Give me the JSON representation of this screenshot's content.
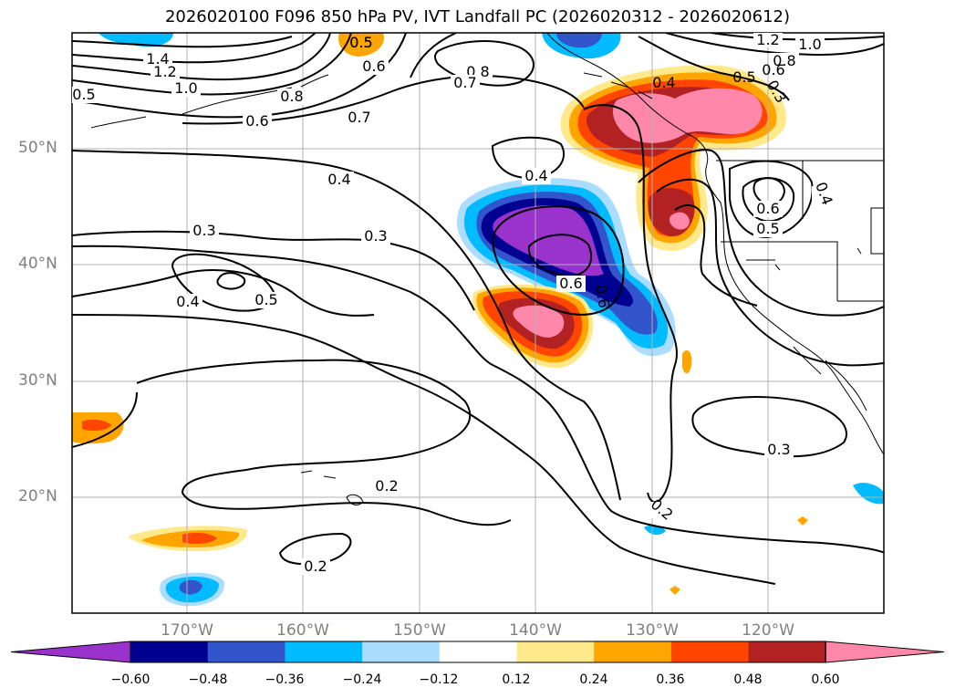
{
  "title": "2026020100 F096 850 hPa PV, IVT Landfall PC (2026020312 - 2026020612)",
  "lat_labels": [
    "50°N",
    "40°N",
    "30°N",
    "20°N"
  ],
  "lon_labels": [
    "170°W",
    "160°W",
    "150°W",
    "140°W",
    "130°W",
    "120°W"
  ],
  "contour_labels": [
    "1.4",
    "1.2",
    "1.0",
    "0.5",
    "0.8",
    "0.6",
    "0.7",
    "0.8",
    "0.7",
    "0.5",
    "0.6",
    "0.4",
    "0.4",
    "0.3",
    "0.3",
    "0.4",
    "0.5",
    "0.6",
    "0.6",
    "0.5",
    "0.4",
    "0.2",
    "0.2",
    "0.3",
    "0.2",
    "1.2",
    "1.0",
    "0.8",
    "0.6",
    "0.5",
    "0.4",
    "0.3",
    "0.5",
    "0.6"
  ],
  "colorbar": {
    "ticks": [
      "−0.60",
      "−0.48",
      "−0.36",
      "−0.24",
      "−0.12",
      "0.12",
      "0.24",
      "0.36",
      "0.48",
      "0.60"
    ],
    "colors": [
      "#9933CC",
      "#000090",
      "#3355CC",
      "#00BBFF",
      "#AADDFF",
      "#FFFFFF",
      "#FFE98A",
      "#FFA500",
      "#FF4500",
      "#B22222",
      "#FF88AA",
      "#FF88AA"
    ]
  },
  "colors": {
    "coast": "#000000",
    "contour": "#000000",
    "grid": "#b0b0b0",
    "axis_label": "#808080"
  }
}
